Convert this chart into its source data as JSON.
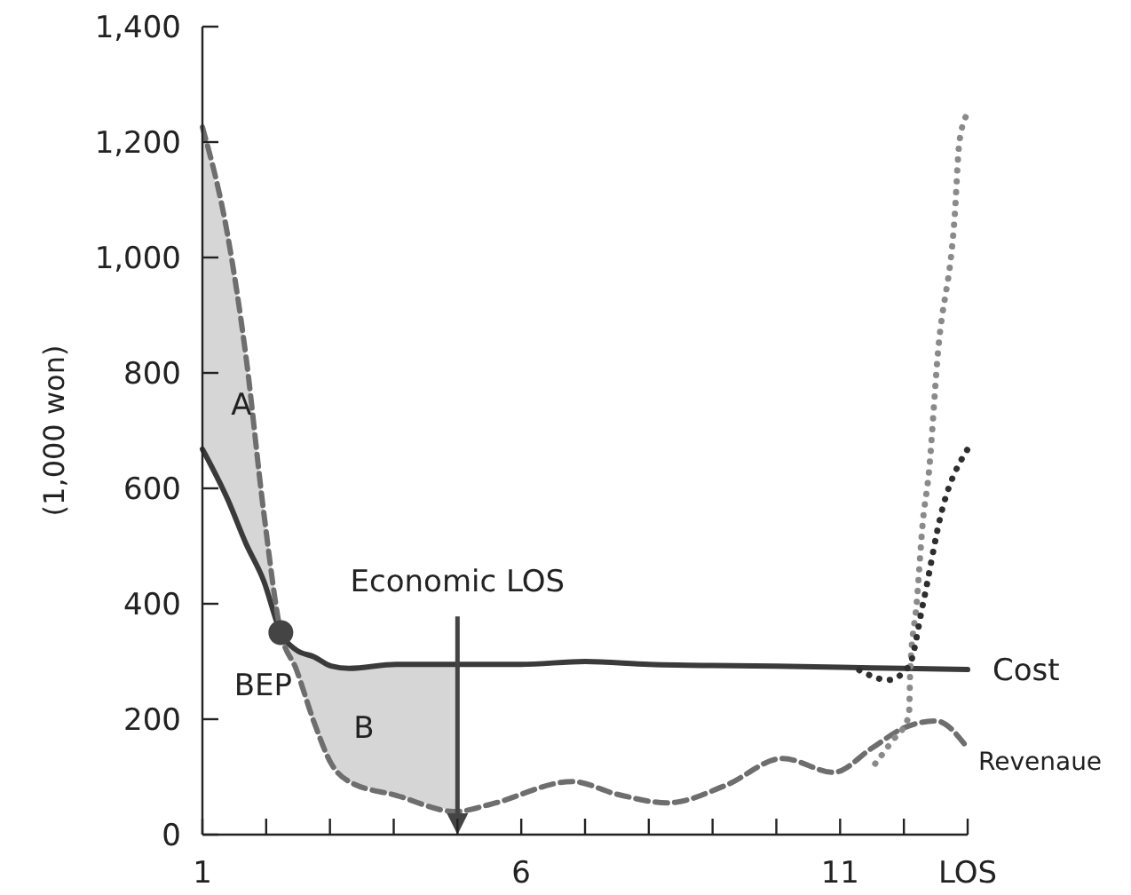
{
  "chart_data": {
    "type": "line",
    "ylabel": "(1,000 won)",
    "xlabel": "LOS",
    "xlim": [
      1,
      13
    ],
    "xticks": [
      1,
      {
        "value": 2,
        "label": null
      },
      {
        "value": 3,
        "label": null
      },
      {
        "value": 4,
        "label": null
      },
      {
        "value": 5,
        "label": null
      },
      6,
      {
        "value": 7,
        "label": null
      },
      {
        "value": 8,
        "label": null
      },
      {
        "value": 9,
        "label": null
      },
      {
        "value": 10,
        "label": null
      },
      11,
      {
        "value": 12,
        "label": null
      },
      {
        "value": 13,
        "label": null
      }
    ],
    "ylim": [
      0,
      1400
    ],
    "yticks": [
      0,
      200,
      400,
      600,
      800,
      {
        "value": 1000,
        "label": "1,000"
      },
      {
        "value": 1200,
        "label": "1,200"
      },
      {
        "value": 1400,
        "label": "1,400"
      }
    ],
    "grid": false,
    "legend": false,
    "series": [
      {
        "name": "Cost",
        "color": "#3a3a3a",
        "line_style": "solid",
        "x": [
          1,
          1.4,
          1.68,
          1.96,
          2.23,
          2.47,
          2.75,
          3.02,
          3.3,
          4.04,
          4.97,
          6,
          7,
          8,
          9,
          10,
          11,
          12,
          13
        ],
        "values": [
          668,
          580,
          505,
          440,
          350,
          320,
          308,
          292,
          288,
          295,
          295,
          295,
          300,
          295,
          293,
          292,
          290,
          288,
          286
        ]
      },
      {
        "name": "Revenaue",
        "color": "#6e6e6e",
        "line_style": "dashed",
        "x": [
          1,
          1.4,
          1.68,
          1.96,
          2.23,
          2.47,
          2.75,
          3.02,
          3.3,
          4.04,
          4.97,
          5.5,
          6.8,
          7.5,
          8.3,
          9.2,
          10.1,
          10.9,
          11.5,
          12,
          12.5,
          13
        ],
        "values": [
          1226,
          1036,
          831,
          560,
          350,
          287,
          195,
          123,
          92,
          68,
          40,
          52,
          92,
          70,
          55,
          85,
          132,
          108,
          150,
          185,
          197,
          150
        ],
        "lower": [
          668,
          580,
          505,
          440,
          350,
          287,
          195,
          123,
          92,
          68,
          40,
          null,
          null,
          null,
          null,
          null,
          null,
          null,
          null,
          null,
          null,
          null
        ],
        "upper": [
          1226,
          1036,
          831,
          560,
          350,
          320,
          308,
          292,
          288,
          295,
          295,
          null,
          null,
          null,
          null,
          null,
          null,
          null,
          null,
          null,
          null,
          null
        ]
      },
      {
        "color": "#8a8a8a",
        "line_style": "dotted",
        "x": [
          11.55,
          11.8,
          12.08,
          12.1,
          12.2,
          12.3,
          12.39,
          12.53,
          12.8,
          12.87,
          13
        ],
        "values": [
          123,
          160,
          206,
          285,
          400,
          545,
          625,
          830,
          1077,
          1200,
          1250
        ]
      },
      {
        "color": "#2e2e2e",
        "line_style": "dotted",
        "x": [
          11.3,
          11.75,
          12.08,
          12.3,
          12.6,
          13
        ],
        "values": [
          285,
          268,
          292,
          400,
          563,
          668
        ]
      },
      {
        "type": "scatter",
        "marker": "circle",
        "color": "#444444",
        "x": [
          2.23
        ],
        "values": [
          350
        ]
      }
    ],
    "ref_lines": [
      {
        "axis": "x",
        "value": 5,
        "label": "Economic LOS",
        "color": "#444444"
      }
    ],
    "annotations": [
      "A",
      "B",
      {
        "text": "BEP",
        "x": 2.23,
        "y": 350
      }
    ]
  }
}
